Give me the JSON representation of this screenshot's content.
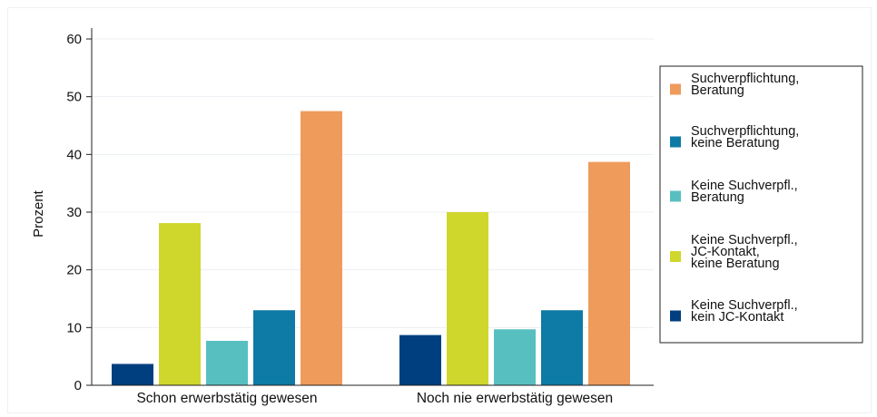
{
  "chart_data": {
    "type": "bar",
    "ylabel": "Prozent",
    "xlabel": "",
    "ylim": [
      0,
      60
    ],
    "yticks": [
      0,
      10,
      20,
      30,
      40,
      50,
      60
    ],
    "grid": true,
    "legend_position": "right",
    "categories": [
      "Schon erwerbstätig gewesen",
      "Noch nie erwerbstätig gewesen"
    ],
    "series": [
      {
        "name": "Keine Suchverpfl., kein JC-Kontakt",
        "legend_lines": [
          "Keine Suchverpfl.,",
          "kein JC-Kontakt"
        ],
        "color": "#003f7f",
        "values": [
          3.7,
          8.7
        ]
      },
      {
        "name": "Keine Suchverpfl., JC-Kontakt, keine Beratung",
        "legend_lines": [
          "Keine Suchverpfl.,",
          "JC-Kontakt,",
          "keine Beratung"
        ],
        "color": "#cfd72c",
        "values": [
          28.1,
          30.0
        ]
      },
      {
        "name": "Keine Suchverpfl., Beratung",
        "legend_lines": [
          "Keine Suchverpfl.,",
          "Beratung"
        ],
        "color": "#58bfc1",
        "values": [
          7.7,
          9.7
        ]
      },
      {
        "name": "Suchverpflichtung, keine Beratung",
        "legend_lines": [
          "Suchverpflichtung,",
          "keine Beratung"
        ],
        "color": "#0e7aa6",
        "values": [
          13.0,
          13.0
        ]
      },
      {
        "name": "Suchverpflichtung, Beratung",
        "legend_lines": [
          "Suchverpflichtung,",
          "Beratung"
        ],
        "color": "#ee9b5c",
        "values": [
          47.5,
          38.7
        ]
      }
    ],
    "legend_order": [
      4,
      3,
      2,
      1,
      0
    ]
  }
}
